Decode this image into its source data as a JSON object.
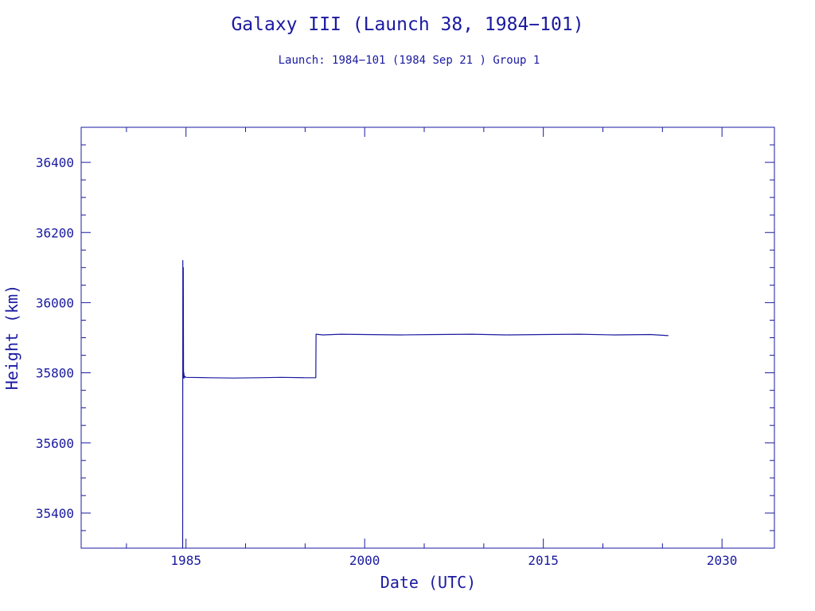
{
  "chart_data": {
    "type": "line",
    "title": "Galaxy III (Launch 38, 1984−101)",
    "subtitle": "Launch: 1984−101  (1984 Sep 21 )  Group 1",
    "xlabel": "Date (UTC)",
    "ylabel": "Height (km)",
    "xlim": [
      1976.2,
      2034.4
    ],
    "ylim": [
      35300,
      36500
    ],
    "xticks": [
      1985,
      2000,
      2015,
      2030
    ],
    "yticks": [
      35400,
      35600,
      35800,
      36000,
      36200,
      36400
    ],
    "grid": false,
    "color": "#1a1aa0",
    "series": [
      {
        "x": [
          1984.72,
          1984.73,
          1984.75,
          1984.77,
          1984.79,
          1984.82,
          1984.85,
          1984.9,
          1985.0,
          1987.0,
          1989.0,
          1991.0,
          1993.0,
          1995.0,
          1995.9,
          1995.92,
          1996.5,
          1998.0,
          2000.0,
          2003.0,
          2006.0,
          2009.0,
          2012.0,
          2015.0,
          2018.0,
          2021.0,
          2024.0,
          2025.5
        ],
        "y": [
          35300,
          36120,
          35790,
          36100,
          35785,
          35800,
          35785,
          35790,
          35787,
          35786,
          35785,
          35786,
          35787,
          35786,
          35786,
          35910,
          35908,
          35910,
          35909,
          35908,
          35909,
          35910,
          35908,
          35909,
          35910,
          35908,
          35909,
          35906
        ]
      }
    ]
  }
}
